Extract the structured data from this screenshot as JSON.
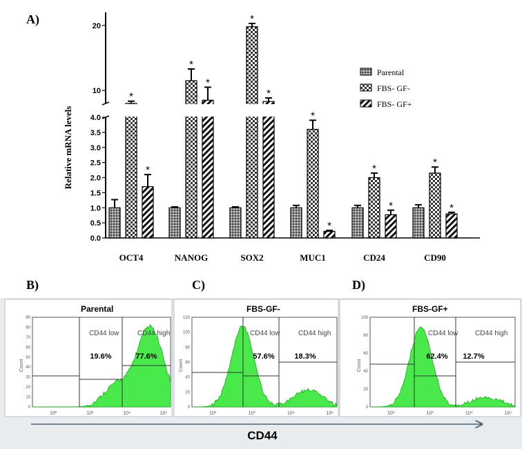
{
  "panel_labels": {
    "a": "A)",
    "b": "B)",
    "c": "C)",
    "d": "D)"
  },
  "colors": {
    "flow_fill": "#49e84b",
    "flow_stroke": "#19a81c",
    "strip_bg": "#e8ecef"
  },
  "chart_data": {
    "type": "bar",
    "ylabel": "Relative mRNA levels",
    "ylim_lower": [
      0,
      4.0
    ],
    "ylim_upper": [
      8,
      22
    ],
    "y_ticks_lower": [
      "0.0",
      "0.5",
      "1.0",
      "1.5",
      "2.0",
      "2.5",
      "3.0",
      "3.5",
      "4.0"
    ],
    "y_ticks_upper": [
      "10",
      "20"
    ],
    "categories": [
      "OCT4",
      "NANOG",
      "SOX2",
      "MUC1",
      "CD24",
      "CD90"
    ],
    "series": [
      {
        "name": "Parental",
        "pattern": "dots",
        "values": [
          1.0,
          1.0,
          1.0,
          1.0,
          1.0,
          1.0
        ],
        "errors": [
          0.27,
          0.03,
          0.03,
          0.08,
          0.08,
          0.1
        ],
        "sig": [
          false,
          false,
          false,
          false,
          false,
          false
        ]
      },
      {
        "name": "FBS- GF-",
        "pattern": "checker",
        "values": [
          8.0,
          11.5,
          19.8,
          3.6,
          2.0,
          2.15
        ],
        "errors": [
          0.35,
          1.8,
          0.5,
          0.3,
          0.15,
          0.2
        ],
        "sig": [
          true,
          true,
          true,
          true,
          true,
          true
        ]
      },
      {
        "name": "FBS- GF+",
        "pattern": "hatch",
        "values": [
          1.7,
          8.5,
          8.3,
          0.22,
          0.77,
          0.8
        ],
        "errors": [
          0.4,
          2.0,
          0.55,
          0.03,
          0.15,
          0.05
        ],
        "sig": [
          true,
          true,
          true,
          true,
          true,
          true
        ]
      }
    ],
    "significance_marker": "*"
  },
  "flow": {
    "axis_label": "CD44",
    "x_ticks": [
      "10²",
      "10³",
      "10⁴",
      "10⁵"
    ],
    "panels": [
      {
        "title": "Parental",
        "y_axis_label": "Count",
        "low_label": "CD44 low",
        "high_label": "CD44 high",
        "low_pct": "19.6%",
        "high_pct": "77.6%",
        "y_ticks": [
          "0",
          "10",
          "20",
          "30",
          "40",
          "50",
          "60",
          "70",
          "80",
          "90"
        ]
      },
      {
        "title": "FBS-GF-",
        "y_axis_label": "Count",
        "low_label": "CD44 low",
        "high_label": "CD44 high",
        "low_pct": "57.6%",
        "high_pct": "18.3%",
        "y_ticks": [
          "0",
          "20",
          "40",
          "60",
          "80",
          "100",
          "120"
        ]
      },
      {
        "title": "FBS-GF+",
        "y_axis_label": "Count",
        "low_label": "CD44 low",
        "high_label": "CD44 high",
        "low_pct": "62.4%",
        "high_pct": "12.7%",
        "y_ticks": [
          "0",
          "20",
          "40",
          "60",
          "80",
          "100"
        ]
      }
    ]
  }
}
